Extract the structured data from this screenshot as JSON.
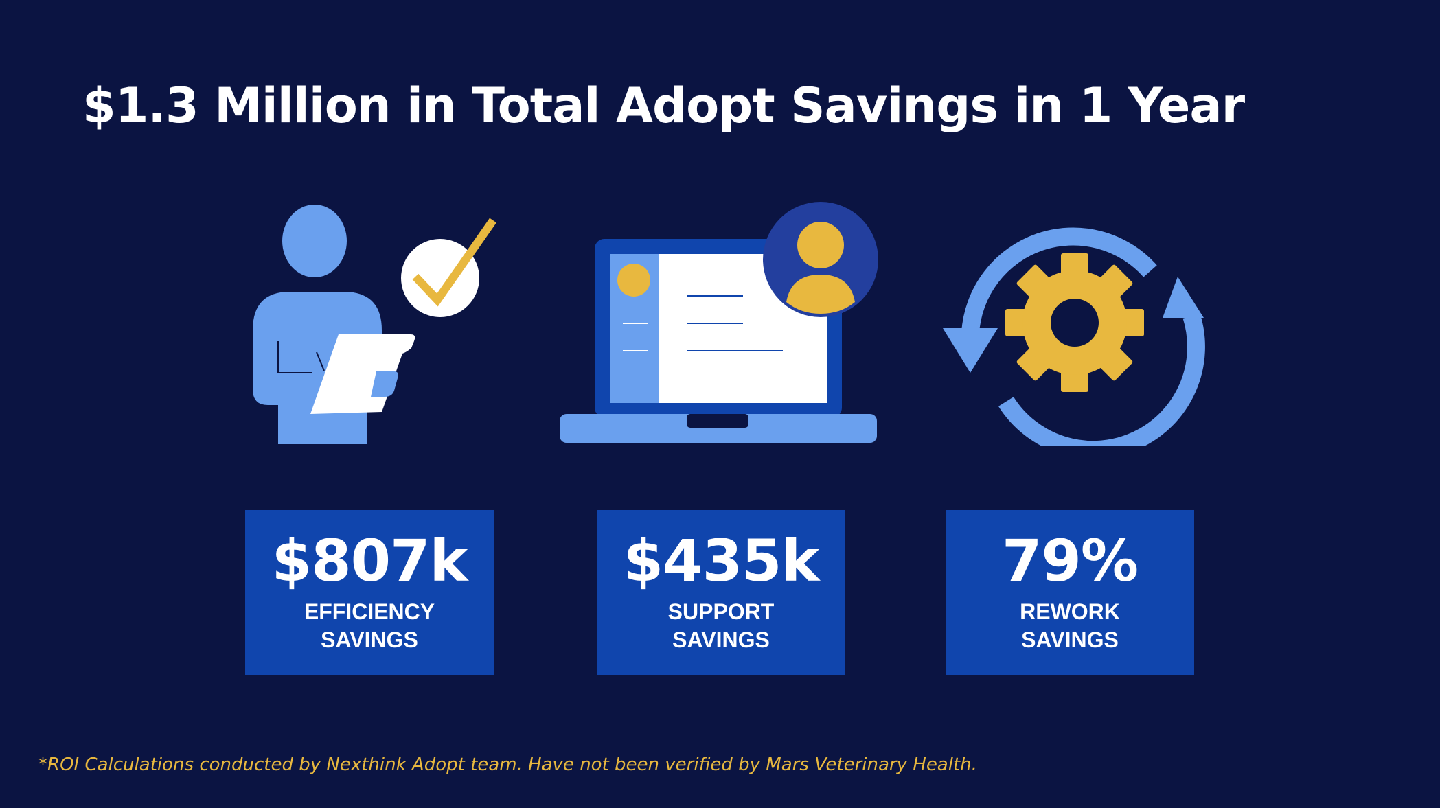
{
  "title": "$1.3 Million in Total Adopt Savings in 1 Year",
  "stats": [
    {
      "value": "$807k",
      "label": "EFFICIENCY\nSAVINGS",
      "icon": "person-clipboard-check-icon"
    },
    {
      "value": "$435k",
      "label": "SUPPORT\nSAVINGS",
      "icon": "laptop-user-icon"
    },
    {
      "value": "79%",
      "label": "REWORK\nSAVINGS",
      "icon": "gear-cycle-icon"
    }
  ],
  "footnote": "*ROI Calculations conducted by Nexthink Adopt team. Have not been verified by Mars Veterinary Health.",
  "colors": {
    "background": "#0b1442",
    "box": "#1045ad",
    "icon_light_blue": "#6aa0ee",
    "icon_gold": "#e8b83f",
    "text": "#ffffff"
  }
}
